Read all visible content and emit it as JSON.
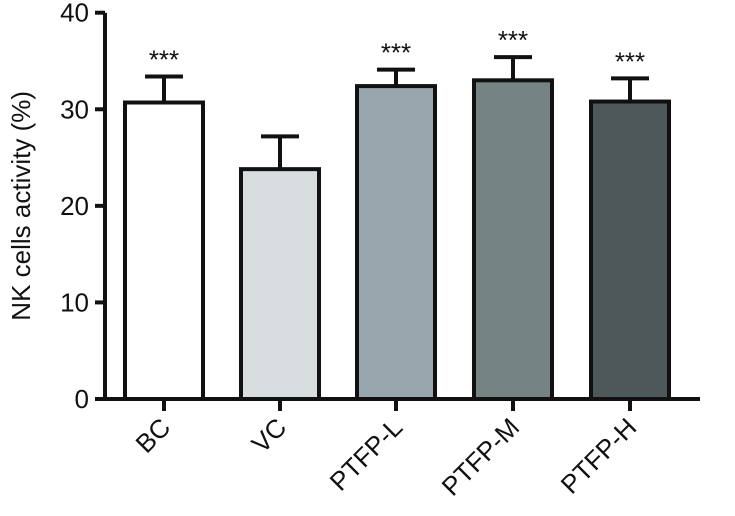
{
  "chart_data": {
    "type": "bar",
    "title": "",
    "xlabel": "",
    "ylabel": "NK cells activity (%)",
    "ylim": [
      0,
      40
    ],
    "yticks": [
      "0",
      "10",
      "20",
      "30",
      "40"
    ],
    "categories": [
      "BC",
      "VC",
      "PTFP-L",
      "PTFP-M",
      "PTFP-H"
    ],
    "values": [
      30.7,
      23.8,
      32.4,
      33.0,
      30.8
    ],
    "errors": [
      2.7,
      3.4,
      1.7,
      2.4,
      2.4
    ],
    "annotations": [
      "***",
      "",
      "***",
      "***",
      "***"
    ],
    "colors": [
      "#ffffff",
      "#d8dedf",
      "#98a7ad",
      "#758383",
      "#4e5759"
    ]
  }
}
